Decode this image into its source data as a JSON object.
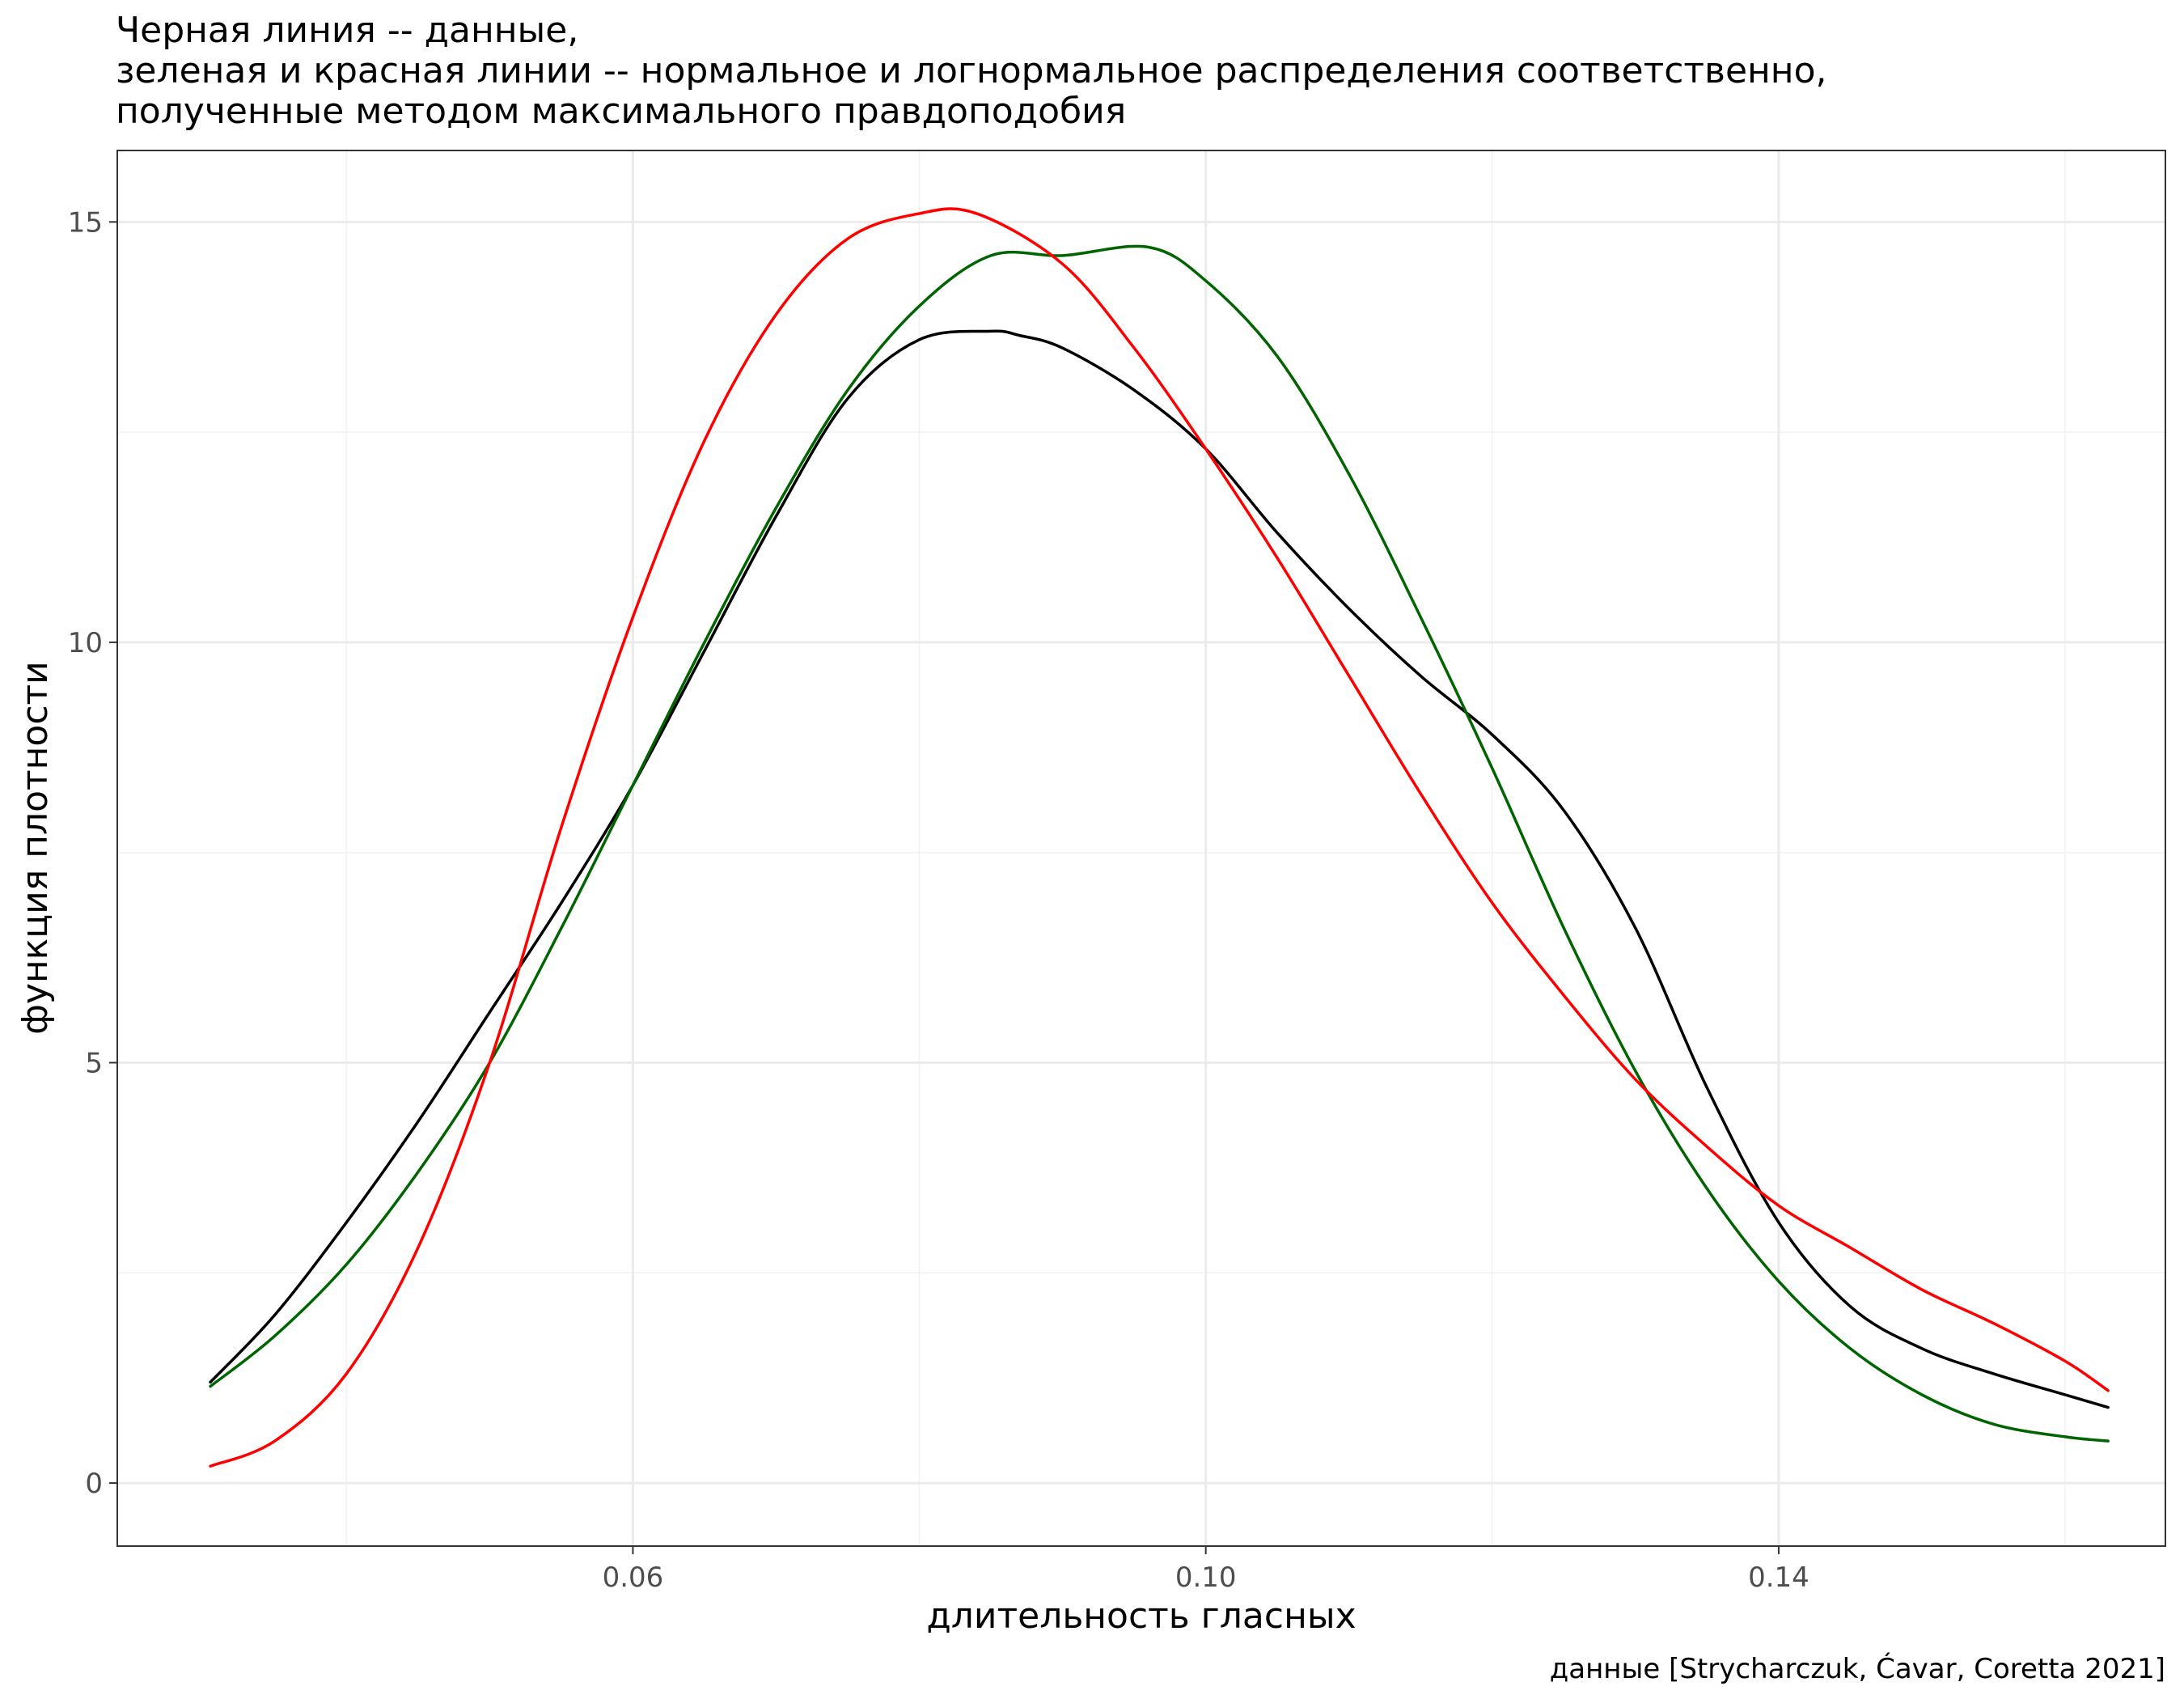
{
  "title_lines": [
    "Черная линия -- данные,",
    "зеленая и красная линии -- нормальное и логнормальное распределения соответственно,",
    "полученные методом максимального правдоподобия"
  ],
  "caption": "данные [Strycharczuk, Ćavar, Coretta 2021]",
  "colors": {
    "data": "#000000",
    "normal": "#006400",
    "lognormal": "#ff0000"
  },
  "chart_data": {
    "type": "line",
    "title": "Черная линия -- данные, зеленая и красная линии -- нормальное и логнормальное распределения соответственно, полученные методом максимального правдоподобия",
    "xlabel": "длительность гласных",
    "ylabel": "функция плотности",
    "xlim": [
      0.024,
      0.167
    ],
    "ylim": [
      -0.75,
      15.85
    ],
    "x_ticks": [
      0.06,
      0.1,
      0.14
    ],
    "x_tick_labels": [
      "0.06",
      "0.10",
      "0.14"
    ],
    "x_minor_ticks": [
      0.04,
      0.08,
      0.12,
      0.16
    ],
    "y_ticks": [
      0,
      5,
      10,
      15
    ],
    "y_tick_labels": [
      "0",
      "5",
      "10",
      "15"
    ],
    "y_minor_ticks": [
      2.5,
      7.5,
      12.5
    ],
    "grid": true,
    "legend": "none",
    "series": [
      {
        "color": "#000000",
        "x": [
          0.0305,
          0.035,
          0.04,
          0.045,
          0.05,
          0.055,
          0.06,
          0.065,
          0.07,
          0.075,
          0.08,
          0.085,
          0.087,
          0.09,
          0.095,
          0.1,
          0.105,
          0.11,
          0.115,
          0.12,
          0.125,
          0.13,
          0.135,
          0.14,
          0.145,
          0.15,
          0.155,
          0.16,
          0.163
        ],
        "y": [
          1.2,
          2.0,
          3.1,
          4.3,
          5.6,
          6.9,
          8.3,
          9.9,
          11.5,
          12.9,
          13.6,
          13.7,
          13.65,
          13.5,
          13.0,
          12.3,
          11.3,
          10.4,
          9.6,
          8.9,
          8.0,
          6.6,
          4.7,
          3.1,
          2.1,
          1.6,
          1.3,
          1.05,
          0.9
        ]
      },
      {
        "color": "#006400",
        "x": [
          0.0305,
          0.035,
          0.04,
          0.045,
          0.05,
          0.055,
          0.06,
          0.065,
          0.07,
          0.075,
          0.08,
          0.085,
          0.09,
          0.096,
          0.1,
          0.105,
          0.11,
          0.115,
          0.12,
          0.125,
          0.13,
          0.135,
          0.14,
          0.145,
          0.15,
          0.155,
          0.16,
          0.163
        ],
        "y": [
          1.15,
          1.75,
          2.6,
          3.7,
          5.0,
          6.6,
          8.3,
          10.0,
          11.6,
          13.0,
          14.0,
          14.6,
          14.6,
          14.7,
          14.3,
          13.4,
          12.0,
          10.3,
          8.5,
          6.6,
          4.9,
          3.5,
          2.4,
          1.6,
          1.05,
          0.7,
          0.55,
          0.5
        ]
      },
      {
        "color": "#ff0000",
        "x": [
          0.0305,
          0.035,
          0.04,
          0.045,
          0.05,
          0.055,
          0.06,
          0.065,
          0.07,
          0.075,
          0.08,
          0.084,
          0.09,
          0.095,
          0.1,
          0.105,
          0.11,
          0.115,
          0.12,
          0.125,
          0.13,
          0.135,
          0.14,
          0.145,
          0.15,
          0.155,
          0.16,
          0.163
        ],
        "y": [
          0.2,
          0.5,
          1.3,
          2.8,
          5.0,
          7.8,
          10.3,
          12.4,
          13.9,
          14.8,
          15.1,
          15.1,
          14.5,
          13.5,
          12.3,
          11.0,
          9.6,
          8.2,
          6.9,
          5.8,
          4.8,
          4.0,
          3.3,
          2.8,
          2.3,
          1.9,
          1.45,
          1.1
        ]
      }
    ]
  }
}
